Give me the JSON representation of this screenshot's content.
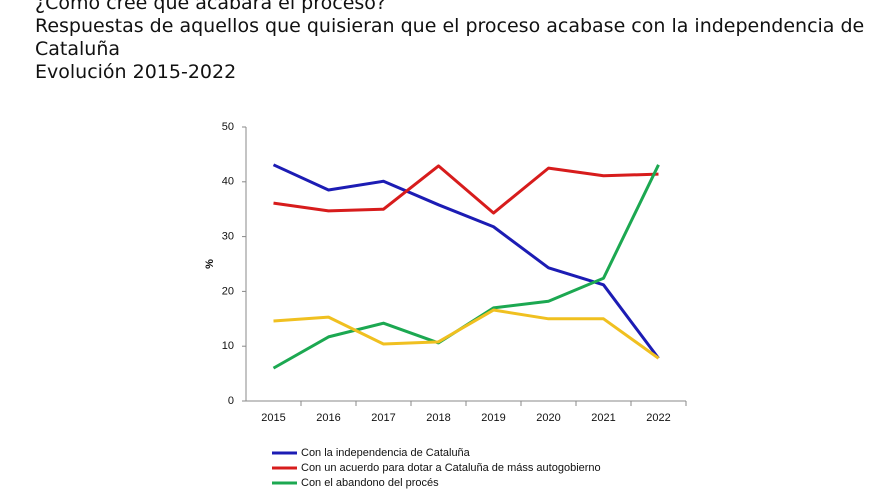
{
  "chart_data": {
    "type": "line",
    "title": "¿Cómo cree que acabará el proceso?",
    "subtitle": "Respuestas de aquellos que quisieran que el proceso acabase con la independencia de Cataluña",
    "subtitle2": "Evolución 2015-2022",
    "y_label": "%",
    "categories": [
      "2015",
      "2016",
      "2017",
      "2018",
      "2019",
      "2020",
      "2021",
      "2022"
    ],
    "ylim": [
      0,
      50
    ],
    "yticks": [
      0,
      10,
      20,
      30,
      40,
      50
    ],
    "grid": false,
    "series": [
      {
        "name": "Con la independencia de Cataluña",
        "color": "#1c1cb4",
        "values": [
          43.1,
          38.5,
          40.1,
          35.8,
          31.8,
          24.3,
          21.2,
          7.8
        ]
      },
      {
        "name": "Con un acuerdo para dotar a Cataluña de máss autogobierno",
        "color": "#d71c1c",
        "values": [
          36.1,
          34.7,
          35.0,
          42.9,
          34.3,
          42.5,
          41.1,
          41.4
        ]
      },
      {
        "name": "Con el abandono del procés",
        "color": "#1ca851",
        "values": [
          6.0,
          11.7,
          14.2,
          10.6,
          17.0,
          18.2,
          22.4,
          43.1
        ]
      },
      {
        "color": "#f0c020",
        "values": [
          14.6,
          15.3,
          10.4,
          10.8,
          16.6,
          15.0,
          15.0,
          7.8
        ]
      }
    ]
  }
}
